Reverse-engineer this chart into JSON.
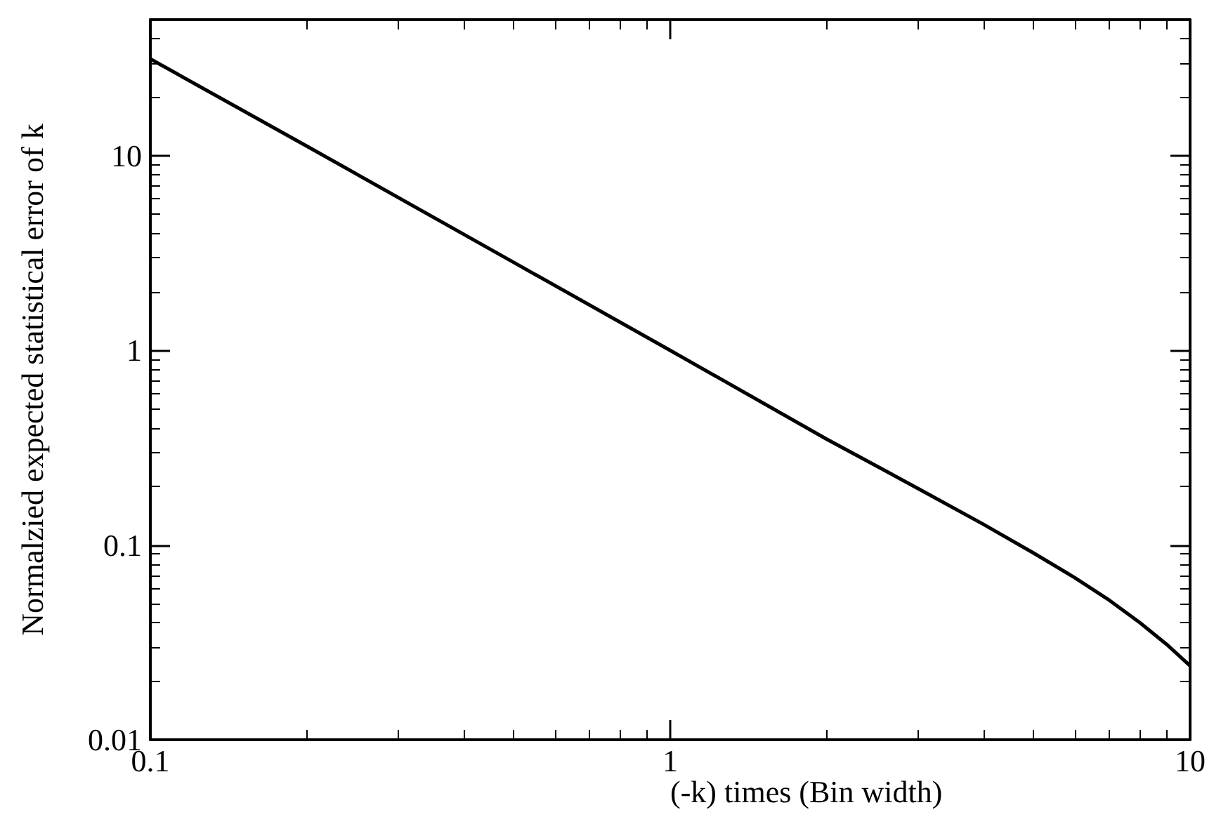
{
  "chart_data": {
    "type": "line",
    "xlabel": "(-k) times (Bin width)",
    "ylabel": "Normalzied expected statistical error of k",
    "log": "xy",
    "xlim": [
      0.1,
      10
    ],
    "ylim": [
      0.01,
      50
    ],
    "xticks": [
      0.1,
      1,
      10
    ],
    "yticks": [
      0.01,
      0.1,
      1,
      10
    ],
    "grid": false,
    "marker": "none",
    "line_style": "solid",
    "x": [
      0.1,
      0.2,
      0.5,
      1,
      2,
      3,
      4,
      5,
      6,
      7,
      8,
      9,
      10
    ],
    "series": [
      {
        "color": "#000000",
        "values": [
          31.4,
          11.2,
          2.83,
          1.0,
          0.35,
          0.195,
          0.128,
          0.091,
          0.068,
          0.052,
          0.04,
          0.031,
          0.024
        ]
      }
    ]
  }
}
